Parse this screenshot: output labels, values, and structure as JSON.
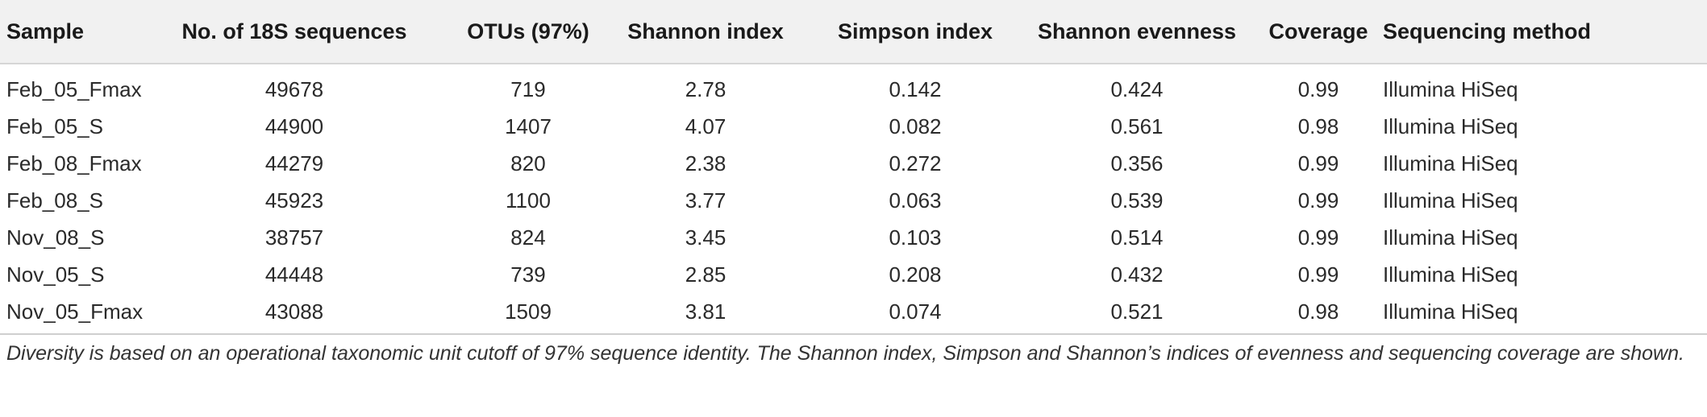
{
  "table": {
    "headers": {
      "sample": "Sample",
      "sequences": "No. of 18S sequences",
      "otus": "OTUs (97%)",
      "shannon": "Shannon index",
      "simpson": "Simpson index",
      "evenness": "Shannon evenness",
      "coverage": "Coverage",
      "method": "Sequencing method"
    },
    "rows": [
      {
        "sample": "Feb_05_Fmax",
        "sequences": "49678",
        "otus": "719",
        "shannon": "2.78",
        "simpson": "0.142",
        "evenness": "0.424",
        "coverage": "0.99",
        "method": "Illumina HiSeq"
      },
      {
        "sample": "Feb_05_S",
        "sequences": "44900",
        "otus": "1407",
        "shannon": "4.07",
        "simpson": "0.082",
        "evenness": "0.561",
        "coverage": "0.98",
        "method": "Illumina HiSeq"
      },
      {
        "sample": "Feb_08_Fmax",
        "sequences": "44279",
        "otus": "820",
        "shannon": "2.38",
        "simpson": "0.272",
        "evenness": "0.356",
        "coverage": "0.99",
        "method": "Illumina HiSeq"
      },
      {
        "sample": "Feb_08_S",
        "sequences": "45923",
        "otus": "1100",
        "shannon": "3.77",
        "simpson": "0.063",
        "evenness": "0.539",
        "coverage": "0.99",
        "method": "Illumina HiSeq"
      },
      {
        "sample": "Nov_08_S",
        "sequences": "38757",
        "otus": "824",
        "shannon": "3.45",
        "simpson": "0.103",
        "evenness": "0.514",
        "coverage": "0.99",
        "method": "Illumina HiSeq"
      },
      {
        "sample": "Nov_05_S",
        "sequences": "44448",
        "otus": "739",
        "shannon": "2.85",
        "simpson": "0.208",
        "evenness": "0.432",
        "coverage": "0.99",
        "method": "Illumina HiSeq"
      },
      {
        "sample": "Nov_05_Fmax",
        "sequences": "43088",
        "otus": "1509",
        "shannon": "3.81",
        "simpson": "0.074",
        "evenness": "0.521",
        "coverage": "0.98",
        "method": "Illumina HiSeq"
      }
    ]
  },
  "footnote": "Diversity is based on an operational taxonomic unit cutoff of 97% sequence identity. The Shannon index, Simpson and Shannon’s indices of evenness and sequencing coverage are shown."
}
